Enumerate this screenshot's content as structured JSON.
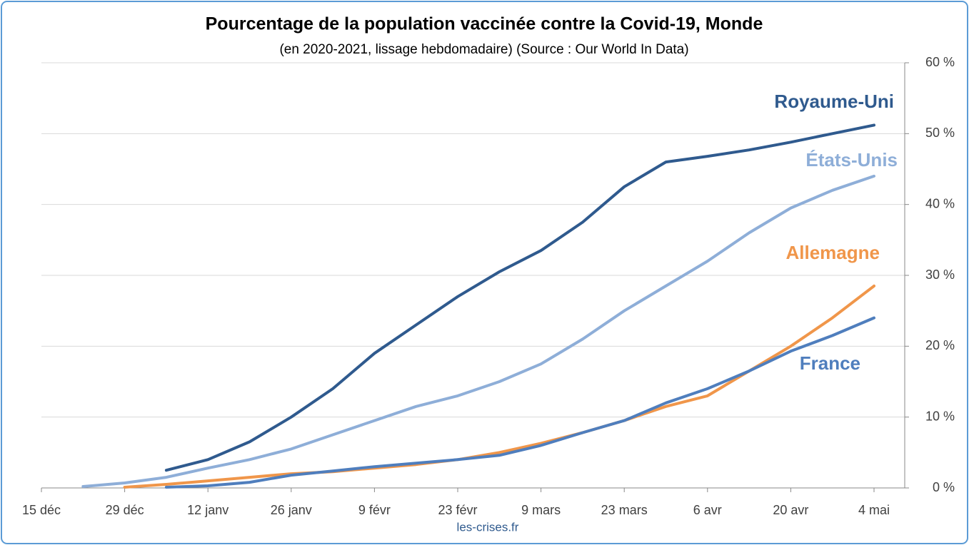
{
  "chart_data": {
    "type": "line",
    "title": "Pourcentage de la population vaccinée contre la Covid-19, Monde",
    "subtitle": "(en 2020-2021, lissage hebdomadaire) (Source : Our World In Data)",
    "source": "les-crises.fr",
    "categories": [
      "15 déc",
      null,
      "29 déc",
      null,
      "12 janv",
      null,
      "26 janv",
      null,
      "9 févr",
      null,
      "23 févr",
      null,
      "9 mars",
      null,
      "23 mars",
      null,
      "6 avr",
      null,
      "20 avr",
      null,
      "4 mai"
    ],
    "series": [
      {
        "name": "Royaume-Uni",
        "color": "#2f5a8e",
        "values": [
          null,
          null,
          null,
          2.5,
          4,
          6.5,
          10,
          14,
          19,
          23,
          27,
          30.5,
          33.5,
          37.5,
          42.5,
          46,
          46.8,
          47.7,
          48.8,
          50,
          51.2
        ]
      },
      {
        "name": "États-Unis",
        "color": "#8eaed8",
        "values": [
          null,
          0.2,
          0.7,
          1.5,
          2.8,
          4,
          5.5,
          7.5,
          9.5,
          11.5,
          13,
          15,
          17.5,
          21,
          25,
          28.5,
          32,
          36,
          39.5,
          42,
          44
        ]
      },
      {
        "name": "Allemagne",
        "color": "#f0964a",
        "values": [
          null,
          null,
          0.1,
          0.5,
          1,
          1.5,
          2,
          2.3,
          2.8,
          3.3,
          4,
          5,
          6.3,
          7.8,
          9.5,
          11.5,
          13,
          16.5,
          20,
          24,
          28.5
        ]
      },
      {
        "name": "France",
        "color": "#4f7ebd",
        "values": [
          null,
          null,
          null,
          0.1,
          0.3,
          0.8,
          1.8,
          2.4,
          3,
          3.5,
          4,
          4.6,
          6,
          7.8,
          9.5,
          12,
          14,
          16.5,
          19.3,
          21.5,
          24
        ]
      }
    ],
    "ylim": [
      0,
      60
    ],
    "yticks": [
      {
        "value": 0,
        "label": "0 %"
      },
      {
        "value": 10,
        "label": "10 %"
      },
      {
        "value": 20,
        "label": "20 %"
      },
      {
        "value": 30,
        "label": "30 %"
      },
      {
        "value": 40,
        "label": "40 %"
      },
      {
        "value": 50,
        "label": "50 %"
      },
      {
        "value": 60,
        "label": "60 %"
      }
    ],
    "grid": true
  }
}
